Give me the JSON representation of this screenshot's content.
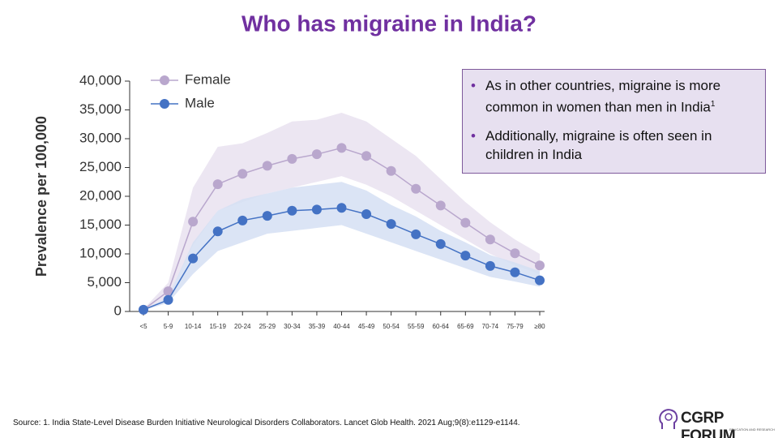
{
  "chart_data": {
    "type": "line",
    "title": "Who has migraine in India?",
    "y_label": "Prevalence per 100,000",
    "categories": [
      "<5",
      "5-9",
      "10-14",
      "15-19",
      "20-24",
      "25-29",
      "30-34",
      "35-39",
      "40-44",
      "45-49",
      "50-54",
      "55-59",
      "60-64",
      "65-69",
      "70-74",
      "75-79",
      "≥80"
    ],
    "series": [
      {
        "name": "Female",
        "color": "#b9a7cd",
        "band_color": "#e9e2f0",
        "values": [
          300,
          3500,
          15600,
          22100,
          23900,
          25300,
          26500,
          27300,
          28400,
          27000,
          24400,
          21300,
          18400,
          15400,
          12500,
          10100,
          8000
        ],
        "upper": [
          400,
          5000,
          21500,
          28600,
          29200,
          31000,
          33000,
          33300,
          34500,
          33000,
          30000,
          27000,
          23000,
          19000,
          15500,
          12500,
          10000
        ],
        "lower": [
          200,
          2500,
          11500,
          17500,
          19000,
          20500,
          21500,
          22500,
          23500,
          22000,
          20000,
          17500,
          15000,
          12500,
          10000,
          8000,
          6500
        ]
      },
      {
        "name": "Male",
        "color": "#4472c4",
        "band_color": "#d5dff3",
        "values": [
          300,
          2000,
          9200,
          13900,
          15800,
          16600,
          17500,
          17700,
          18000,
          16900,
          15200,
          13400,
          11700,
          9700,
          7900,
          6800,
          5400
        ],
        "upper": [
          300,
          2500,
          12000,
          17500,
          19500,
          20500,
          21500,
          22000,
          22500,
          21000,
          18500,
          16500,
          14000,
          12000,
          9800,
          8500,
          7000
        ],
        "lower": [
          200,
          1500,
          6500,
          10500,
          12000,
          13500,
          14000,
          14500,
          15000,
          13500,
          12000,
          10500,
          9000,
          7500,
          6000,
          5200,
          4300
        ]
      }
    ],
    "ylim": [
      0,
      40000
    ],
    "yticks": [
      0,
      {
        "value": 5000,
        "label": "5,000"
      },
      {
        "value": 10000,
        "label": "10,000"
      },
      {
        "value": 15000,
        "label": "15,000"
      },
      {
        "value": 20000,
        "label": "20,000"
      },
      {
        "value": 25000,
        "label": "25,000"
      },
      {
        "value": 30000,
        "label": "30,000"
      },
      {
        "value": 35000,
        "label": "35,000"
      },
      {
        "value": 40000,
        "label": "40,000"
      }
    ],
    "legend": "upper-left"
  },
  "callout": {
    "bullets": [
      {
        "text": "As in other countries, migraine is more common in women than men in India",
        "superscript": "1"
      },
      {
        "text": "Additionally, migraine is often seen in children in India"
      }
    ]
  },
  "source": "Source: 1. India State-Level Disease Burden Initiative Neurological Disorders Collaborators. Lancet Glob Health. 2021 Aug;9(8):e1129-e1144.",
  "logo": {
    "text": "CGRP FORUM",
    "subtitle": "EDUCATION AND RESEARCH"
  }
}
